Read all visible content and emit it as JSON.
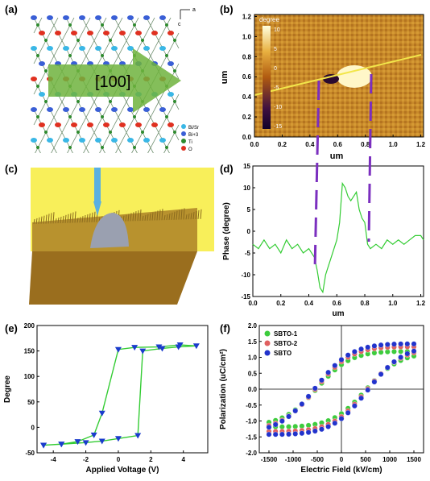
{
  "panels": {
    "a": {
      "label": "(a)",
      "direction_label": "[100]",
      "axis_a": "a",
      "axis_c": "c",
      "legend": [
        {
          "name": "Bi/Sr",
          "color": "#3ab7e6"
        },
        {
          "name": "Bi+3",
          "color": "#3a5fd6"
        },
        {
          "name": "Ti",
          "color": "#2e8b2e"
        },
        {
          "name": "O",
          "color": "#e03020"
        }
      ]
    },
    "b": {
      "label": "(b)",
      "colorbar_title": "degree",
      "colorbar_ticks": [
        "10",
        "5",
        "0",
        "-5",
        "-10",
        "-15"
      ],
      "xlabel": "um",
      "ylabel": "um",
      "xticks": [
        "0.0",
        "0.2",
        "0.4",
        "0.6",
        "0.8",
        "1.0",
        "1.2"
      ],
      "yticks": [
        "0.0",
        "0.2",
        "0.4",
        "0.6",
        "0.8",
        "1.0",
        "1.2"
      ]
    },
    "c": {
      "label": "(c)"
    },
    "d": {
      "label": "(d)"
    },
    "e": {
      "label": "(e)"
    },
    "f": {
      "label": "(f)"
    }
  },
  "chart_data": [
    {
      "id": "d",
      "type": "line",
      "xlabel": "um",
      "ylabel": "Phase (degree)",
      "xlim": [
        0,
        1.22
      ],
      "ylim": [
        -15,
        15
      ],
      "xticks": [
        "0.0",
        "0.2",
        "0.4",
        "0.6",
        "0.8",
        "1.0",
        "1.2"
      ],
      "yticks": [
        "15",
        "10",
        "5",
        "0",
        "-5",
        "-10",
        "-15"
      ],
      "color": "#33cc33",
      "x": [
        0.0,
        0.04,
        0.08,
        0.12,
        0.16,
        0.2,
        0.24,
        0.28,
        0.32,
        0.36,
        0.4,
        0.44,
        0.46,
        0.48,
        0.5,
        0.52,
        0.54,
        0.56,
        0.58,
        0.6,
        0.62,
        0.64,
        0.66,
        0.68,
        0.7,
        0.72,
        0.74,
        0.76,
        0.78,
        0.8,
        0.82,
        0.84,
        0.88,
        0.92,
        0.96,
        1.0,
        1.04,
        1.08,
        1.12,
        1.16,
        1.2,
        1.22
      ],
      "y": [
        -3,
        -4,
        -2,
        -4,
        -3,
        -5,
        -2,
        -4,
        -3,
        -5,
        -4,
        -6,
        -9,
        -13,
        -14,
        -10,
        -8,
        -6,
        -4,
        -2,
        2,
        11,
        10,
        8,
        7,
        8,
        9,
        5,
        3,
        2,
        -3,
        -4,
        -3,
        -4,
        -2,
        -3,
        -2,
        -3,
        -2,
        -1,
        -1,
        -2
      ]
    },
    {
      "id": "e",
      "type": "line",
      "xlabel": "Applied Voltage (V)",
      "ylabel": "Degree",
      "xlim": [
        -5,
        5.5
      ],
      "ylim": [
        -50,
        200
      ],
      "xticks": [
        "-4",
        "-2",
        "0",
        "2",
        "4"
      ],
      "yticks": [
        "200",
        "150",
        "100",
        "50",
        "0",
        "-50"
      ],
      "color": "#33cc33",
      "marker_color": "#1a3ccc",
      "x": [
        -4.6,
        -3.5,
        -2.5,
        -1.5,
        -1.0,
        0.0,
        1.0,
        2.5,
        3.8,
        4.8,
        3.7,
        2.7,
        1.5,
        1.2,
        0.0,
        -1.0,
        -2.0,
        -3.5,
        -4.6
      ],
      "y": [
        -35,
        -33,
        -28,
        -15,
        28,
        153,
        157,
        158,
        162,
        160,
        158,
        155,
        150,
        -16,
        -22,
        -27,
        -30,
        -33,
        -35
      ]
    },
    {
      "id": "f",
      "type": "scatter",
      "xlabel": "Electric Field (kV/cm)",
      "ylabel": "Polarization (uC/cm²)",
      "xlim": [
        -1700,
        1700
      ],
      "ylim": [
        -2.0,
        2.0
      ],
      "xticks": [
        "-1500",
        "-1000",
        "-500",
        "0",
        "500",
        "1000",
        "1500"
      ],
      "yticks": [
        "2.0",
        "1.5",
        "1.0",
        "0.5",
        "0.0",
        "-0.5",
        "-1.0",
        "-1.5",
        "-2.0"
      ],
      "legend_position": "top-left",
      "series": [
        {
          "name": "SBTO-1",
          "color": "#3dcc3d",
          "Emax": 1500,
          "Pmax": 1.12,
          "Pr": 0.78,
          "Ec": 520
        },
        {
          "name": "SBTO-2",
          "color": "#e06060",
          "Emax": 1500,
          "Pmax": 1.26,
          "Pr": 0.92,
          "Ec": 540
        },
        {
          "name": "SBTO",
          "color": "#2233cc",
          "Emax": 1500,
          "Pmax": 1.35,
          "Pr": 1.02,
          "Ec": 560
        }
      ]
    }
  ]
}
